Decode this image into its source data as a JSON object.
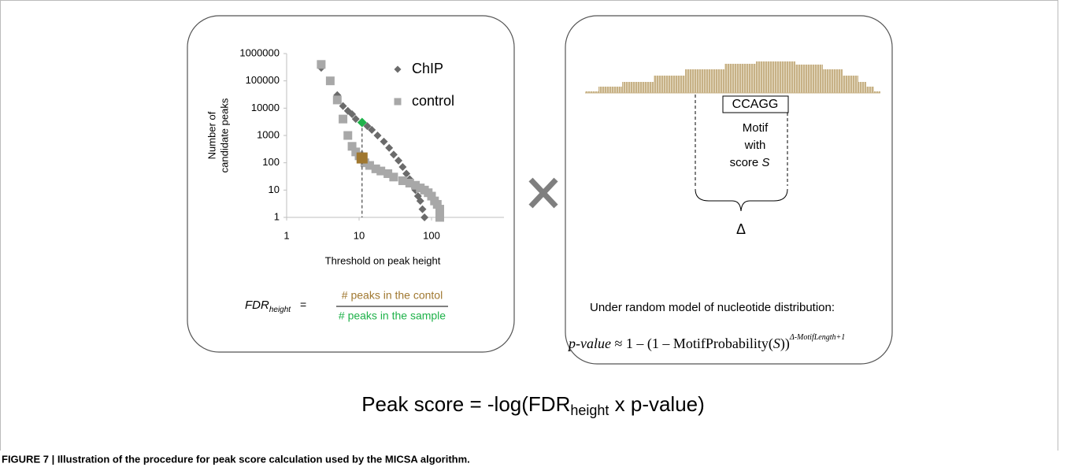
{
  "chart_data": {
    "type": "scatter",
    "y_label": [
      "Number of",
      "candidate  peaks"
    ],
    "x_label": "Threshold on peak height",
    "log_x": true,
    "log_y": true,
    "grid": false,
    "xlim": [
      1,
      1000
    ],
    "ylim": [
      1,
      1000000
    ],
    "xticks": [
      1,
      10,
      100
    ],
    "yticks": [
      1,
      10,
      100,
      1000,
      10000,
      100000,
      1000000
    ],
    "series": [
      {
        "name": "ChIP",
        "color": "#6b6b6b",
        "marker": "diamond",
        "x": [
          3,
          5,
          6,
          7,
          8,
          9,
          13,
          15,
          18,
          22,
          26,
          30,
          35,
          40,
          45,
          50,
          55,
          60,
          65,
          70,
          75,
          80
        ],
        "values": [
          300000,
          30000,
          12000,
          8000,
          6000,
          4000,
          2200,
          1600,
          1000,
          600,
          350,
          200,
          120,
          70,
          40,
          25,
          15,
          10,
          6,
          4,
          2,
          1
        ]
      },
      {
        "name": "control",
        "color": "#a8a8a8",
        "marker": "square",
        "x": [
          3,
          4,
          5,
          6,
          7,
          8,
          9,
          10,
          12,
          14,
          17,
          20,
          25,
          30,
          40,
          50,
          60,
          70,
          80,
          90,
          100,
          110,
          120,
          130,
          130
        ],
        "values": [
          400000,
          100000,
          20000,
          4000,
          1000,
          400,
          250,
          180,
          100,
          80,
          60,
          50,
          40,
          30,
          22,
          18,
          15,
          12,
          10,
          8,
          6,
          4,
          3,
          2,
          1
        ]
      }
    ],
    "highlights": [
      {
        "color": "#1fb24a",
        "marker": "diamond",
        "x": 11,
        "y": 3000
      },
      {
        "color": "#a07830",
        "marker": "square",
        "x": 11,
        "y": 150
      }
    ]
  },
  "fdr_formula": {
    "lhs": "FDR",
    "lhs_sub": "height",
    "equals": "=",
    "numerator": "# peaks in the contol",
    "denominator": "# peaks in the sample"
  },
  "motif": {
    "sequence": "CCAGG",
    "label_lines": [
      "Motif",
      "with",
      "score"
    ],
    "score_symbol": "S",
    "delta": "Δ"
  },
  "pvalue": {
    "intro": "Under random model of nucleotide distribution:",
    "lhs": "p-value",
    "rhs": " ≈ 1 – (1 – MotifProbability(",
    "arg": "S",
    "close": "))",
    "exponent": "Δ-MotifLength+1"
  },
  "peak_score": {
    "text": "Peak score = -log(FDR",
    "sub": "height",
    "rest": " x p-value)"
  },
  "caption": "FIGURE 7 | Illustration of the procedure for peak score calculation used by the MICSA algorithm."
}
